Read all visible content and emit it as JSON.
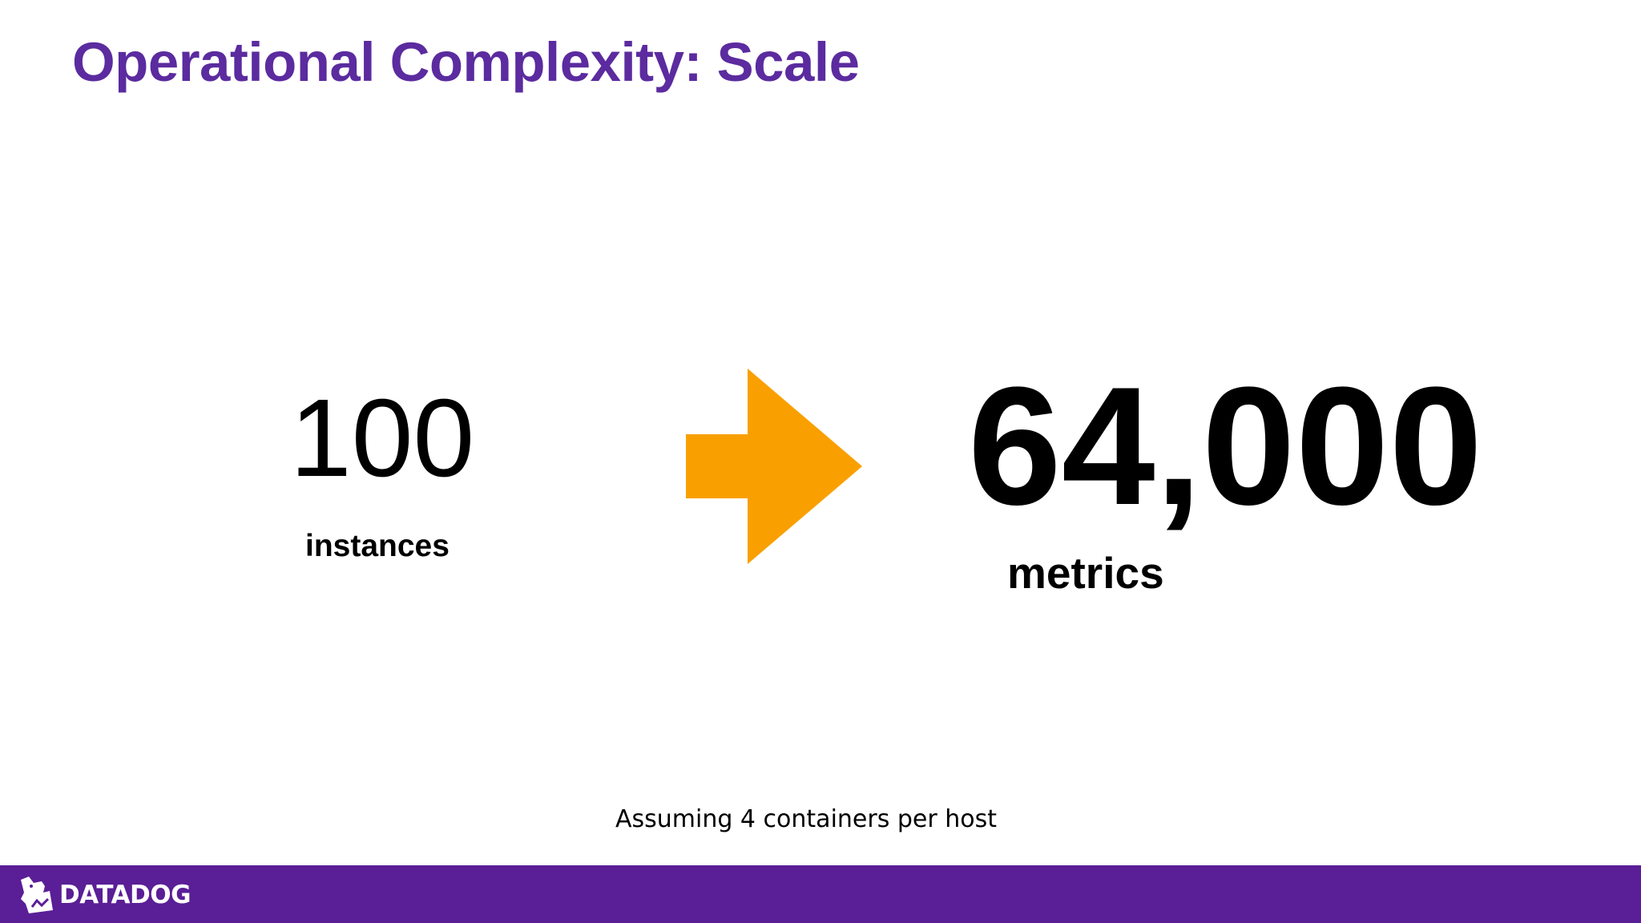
{
  "slide": {
    "title": "Operational Complexity: Scale",
    "left": {
      "number": "100",
      "label": "instances"
    },
    "right": {
      "number": "64,000",
      "label": "metrics"
    },
    "footnote": "Assuming 4 containers per host"
  },
  "footer": {
    "logo_text": "DATADOG"
  },
  "colors": {
    "title": "#5b2b9f",
    "arrow": "#f9a000",
    "footer_bar": "#5a1e96"
  }
}
